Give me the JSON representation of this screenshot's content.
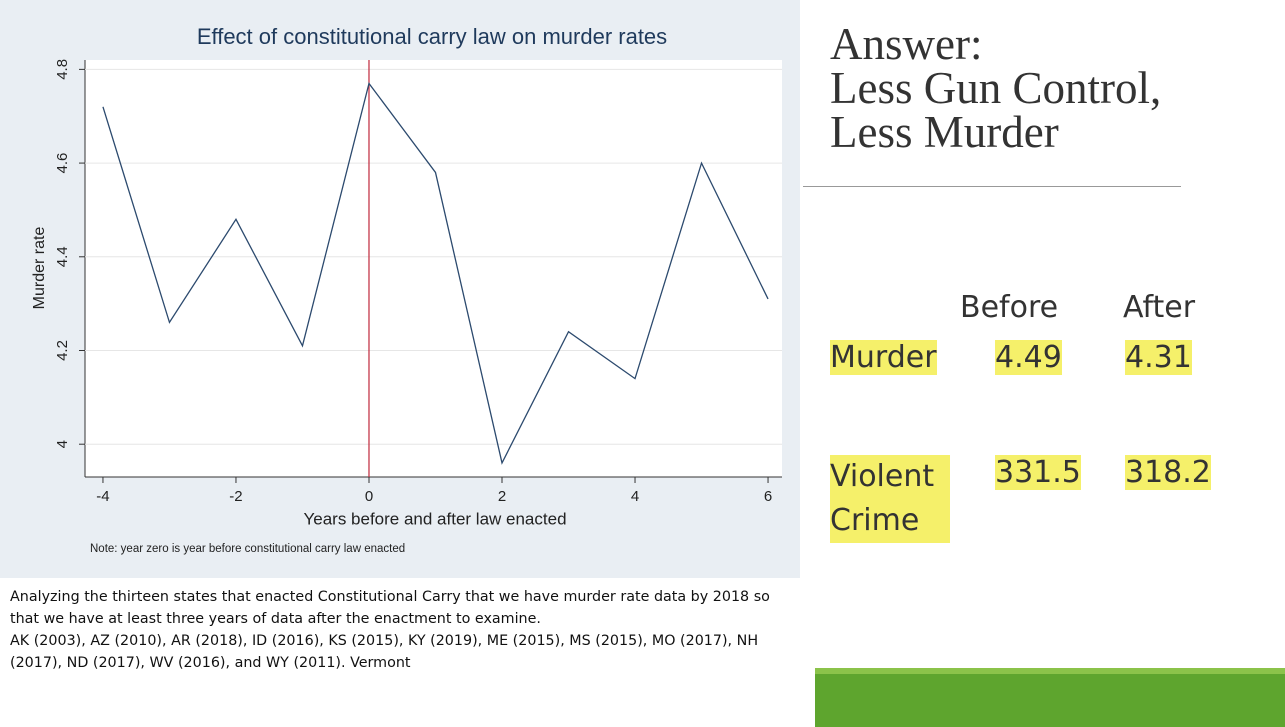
{
  "chart_data": {
    "type": "line",
    "title": "Effect of constitutional carry law on murder rates",
    "x_label": "Years before and after law enacted",
    "y_label": "Murder rate",
    "note": "Note: year zero is year before constitutional carry law enacted",
    "x": [
      -4,
      -3,
      -2,
      -1,
      0,
      1,
      2,
      3,
      4,
      5,
      6
    ],
    "values": [
      4.72,
      4.26,
      4.48,
      4.21,
      4.77,
      4.58,
      3.96,
      4.24,
      4.14,
      4.6,
      4.31
    ],
    "color": "#2c4a6e",
    "vline": 0,
    "vline_color": "#c0283c",
    "xlim": [
      -4.27,
      6.21
    ],
    "xticks": [
      -4,
      -2,
      0,
      2,
      4,
      6
    ],
    "ylim": [
      3.93,
      4.82
    ],
    "yticks": [
      4,
      4.2,
      4.4,
      4.6,
      4.8
    ]
  },
  "slide": {
    "heading": [
      "Answer:",
      "Less Gun Control,",
      "Less Murder"
    ],
    "table": {
      "header": [
        "Before",
        "After"
      ],
      "rows": [
        {
          "label": "Murder",
          "values": [
            4.49,
            4.31
          ]
        },
        {
          "label": "Violent Crime",
          "values": [
            331.5,
            318.2
          ]
        }
      ]
    },
    "paragraphs": [
      "Analyzing the thirteen states that enacted Constitutional Carry that we have murder rate data by 2018 so that we have at least three years of data after the enactment to examine.",
      "AK (2003), AZ (2010), AR (2018), ID (2016), KS (2015), KY (2019), ME (2015), MS (2015), MO (2017), NH (2017), ND (2017), WV (2016), and WY (2011). Vermont"
    ]
  }
}
